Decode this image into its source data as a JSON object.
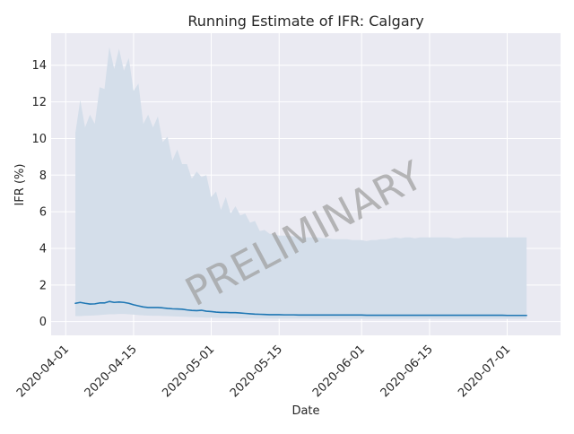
{
  "chart_data": {
    "type": "line",
    "title": "Running Estimate of IFR: Calgary",
    "xlabel": "Date",
    "ylabel": "IFR (%)",
    "watermark": "PRELIMINARY",
    "x_start": "2020-04-03",
    "x_end": "2020-07-05",
    "xlim": [
      "2020-03-29",
      "2020-07-12"
    ],
    "ylim": [
      -0.75,
      15.75
    ],
    "x_ticks": [
      "2020-04-01",
      "2020-04-15",
      "2020-05-01",
      "2020-05-15",
      "2020-06-01",
      "2020-06-15",
      "2020-07-01"
    ],
    "y_ticks": [
      0,
      2,
      4,
      6,
      8,
      10,
      12,
      14
    ],
    "grid": true,
    "colors": {
      "background": "#eaeaf2",
      "grid": "#ffffff",
      "line": "#1f77b4",
      "band": "#d4deea",
      "watermark": "#a0a0a0"
    },
    "series": [
      {
        "kind": "band",
        "upper": [
          10.3,
          12.1,
          10.6,
          11.3,
          10.8,
          12.8,
          12.7,
          15.0,
          13.8,
          14.9,
          13.7,
          14.4,
          12.6,
          13.0,
          10.8,
          11.3,
          10.6,
          11.2,
          9.8,
          10.1,
          8.8,
          9.4,
          8.6,
          8.6,
          7.8,
          8.2,
          7.9,
          8.0,
          6.8,
          7.1,
          6.1,
          6.8,
          5.9,
          6.3,
          5.8,
          5.9,
          5.4,
          5.5,
          4.95,
          5.0,
          4.8,
          4.75,
          4.7,
          4.7,
          4.7,
          4.65,
          4.65,
          4.6,
          4.6,
          4.6,
          4.6,
          4.55,
          4.55,
          4.5,
          4.5,
          4.5,
          4.5,
          4.45,
          4.45,
          4.45,
          4.4,
          4.45,
          4.45,
          4.5,
          4.5,
          4.55,
          4.6,
          4.55,
          4.6,
          4.6,
          4.55,
          4.6,
          4.6,
          4.6,
          4.6,
          4.6,
          4.6,
          4.6,
          4.55,
          4.55,
          4.6,
          4.6,
          4.6,
          4.6,
          4.6,
          4.6,
          4.6,
          4.6,
          4.6,
          4.6,
          4.6,
          4.6,
          4.6,
          4.6
        ],
        "lower": [
          0.3,
          0.3,
          0.32,
          0.33,
          0.34,
          0.36,
          0.38,
          0.4,
          0.4,
          0.42,
          0.42,
          0.4,
          0.38,
          0.36,
          0.34,
          0.33,
          0.32,
          0.32,
          0.31,
          0.3,
          0.29,
          0.28,
          0.27,
          0.26,
          0.25,
          0.24,
          0.23,
          0.22,
          0.22,
          0.21,
          0.2,
          0.2,
          0.19,
          0.19,
          0.18,
          0.18,
          0.18,
          0.17,
          0.17,
          0.17,
          0.17,
          0.16,
          0.16,
          0.16,
          0.16,
          0.16,
          0.16,
          0.16,
          0.16,
          0.15,
          0.15,
          0.15,
          0.15,
          0.15,
          0.15,
          0.15,
          0.15,
          0.15,
          0.15,
          0.15,
          0.15,
          0.15,
          0.15,
          0.15,
          0.15,
          0.15,
          0.15,
          0.15,
          0.15,
          0.15,
          0.15,
          0.15,
          0.15,
          0.15,
          0.15,
          0.15,
          0.15,
          0.15,
          0.15,
          0.15,
          0.15,
          0.15,
          0.15,
          0.15,
          0.15,
          0.15,
          0.15,
          0.15,
          0.15,
          0.15,
          0.15,
          0.15,
          0.15,
          0.15
        ]
      },
      {
        "kind": "line",
        "values": [
          1.0,
          1.05,
          1.0,
          0.96,
          0.97,
          1.02,
          1.02,
          1.1,
          1.05,
          1.07,
          1.05,
          1.0,
          0.92,
          0.86,
          0.8,
          0.77,
          0.77,
          0.77,
          0.75,
          0.72,
          0.7,
          0.69,
          0.68,
          0.64,
          0.61,
          0.6,
          0.62,
          0.57,
          0.55,
          0.52,
          0.5,
          0.5,
          0.49,
          0.49,
          0.47,
          0.45,
          0.43,
          0.41,
          0.4,
          0.39,
          0.38,
          0.38,
          0.38,
          0.37,
          0.37,
          0.37,
          0.36,
          0.36,
          0.36,
          0.36,
          0.36,
          0.36,
          0.36,
          0.36,
          0.36,
          0.36,
          0.36,
          0.36,
          0.36,
          0.36,
          0.35,
          0.35,
          0.35,
          0.35,
          0.35,
          0.35,
          0.35,
          0.35,
          0.35,
          0.35,
          0.35,
          0.35,
          0.35,
          0.35,
          0.35,
          0.35,
          0.35,
          0.35,
          0.35,
          0.35,
          0.35,
          0.35,
          0.35,
          0.35,
          0.35,
          0.35,
          0.35,
          0.35,
          0.35,
          0.34,
          0.34,
          0.34,
          0.34,
          0.34
        ]
      }
    ]
  }
}
